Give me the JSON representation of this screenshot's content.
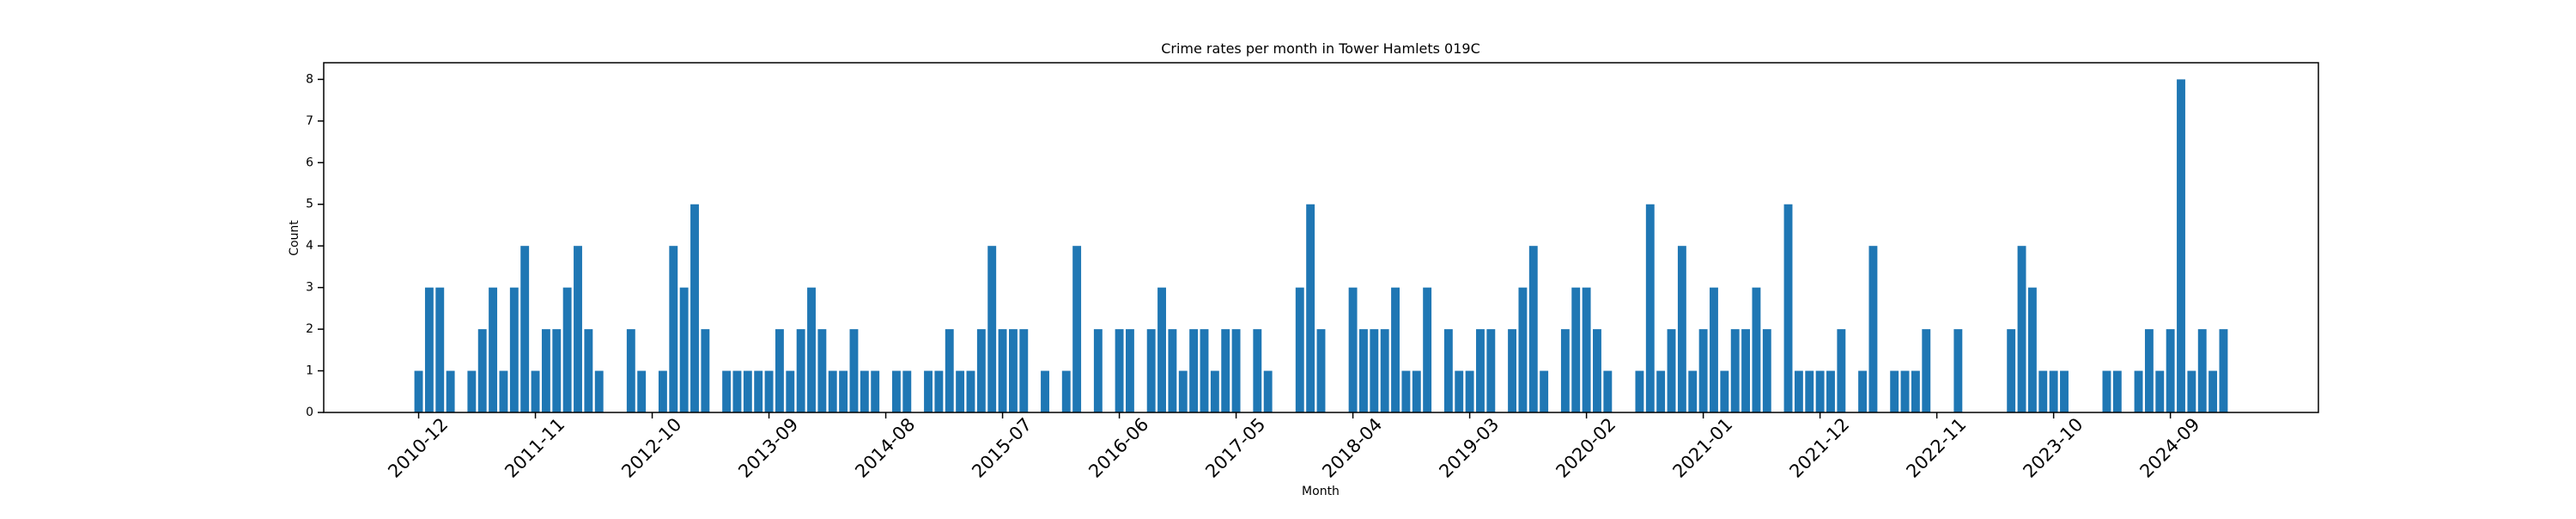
{
  "chart_data": {
    "type": "bar",
    "title": "Crime rates per month in Tower Hamlets 019C",
    "x_label": "Month",
    "y_label": "Count",
    "color": "#1f77b4",
    "ylim": [
      0,
      8.4
    ],
    "yticks": [
      0,
      1,
      2,
      3,
      4,
      5,
      6,
      7,
      8
    ],
    "grid": false,
    "categories": [
      "2010-12",
      null,
      null,
      null,
      null,
      null,
      null,
      null,
      null,
      null,
      null,
      "2011-11",
      null,
      null,
      null,
      null,
      null,
      null,
      null,
      null,
      null,
      null,
      "2012-10",
      null,
      null,
      null,
      null,
      null,
      null,
      null,
      null,
      null,
      null,
      "2013-09",
      null,
      null,
      null,
      null,
      null,
      null,
      null,
      null,
      null,
      null,
      "2014-08",
      null,
      null,
      null,
      null,
      null,
      null,
      null,
      null,
      null,
      null,
      "2015-07",
      null,
      null,
      null,
      null,
      null,
      null,
      null,
      null,
      null,
      null,
      "2016-06",
      null,
      null,
      null,
      null,
      null,
      null,
      null,
      null,
      null,
      null,
      "2017-05",
      null,
      null,
      null,
      null,
      null,
      null,
      null,
      null,
      null,
      null,
      "2018-04",
      null,
      null,
      null,
      null,
      null,
      null,
      null,
      null,
      null,
      null,
      "2019-03",
      null,
      null,
      null,
      null,
      null,
      null,
      null,
      null,
      null,
      null,
      "2020-02",
      null,
      null,
      null,
      null,
      null,
      null,
      null,
      null,
      null,
      null,
      "2021-01",
      null,
      null,
      null,
      null,
      null,
      null,
      null,
      null,
      null,
      null,
      "2021-12",
      null,
      null,
      null,
      null,
      null,
      null,
      null,
      null,
      null,
      null,
      "2022-11",
      null,
      null,
      null,
      null,
      null,
      null,
      null,
      null,
      null,
      null,
      "2023-10",
      null,
      null,
      null,
      null,
      null,
      null,
      null,
      null,
      null,
      null,
      "2024-09",
      null,
      null,
      null,
      null,
      null
    ],
    "values": [
      1,
      3,
      3,
      1,
      0,
      1,
      2,
      3,
      1,
      3,
      4,
      1,
      2,
      2,
      3,
      4,
      2,
      1,
      0,
      0,
      2,
      1,
      0,
      1,
      4,
      3,
      5,
      2,
      0,
      1,
      1,
      1,
      1,
      1,
      2,
      1,
      2,
      3,
      2,
      1,
      1,
      2,
      1,
      1,
      0,
      1,
      1,
      0,
      1,
      1,
      2,
      1,
      1,
      2,
      4,
      2,
      2,
      2,
      0,
      1,
      0,
      1,
      4,
      0,
      2,
      0,
      2,
      2,
      0,
      2,
      3,
      2,
      1,
      2,
      2,
      1,
      2,
      2,
      0,
      2,
      1,
      0,
      0,
      3,
      5,
      2,
      0,
      0,
      3,
      2,
      2,
      2,
      3,
      1,
      1,
      3,
      0,
      2,
      1,
      1,
      2,
      2,
      0,
      2,
      3,
      4,
      1,
      0,
      2,
      3,
      3,
      2,
      1,
      0,
      0,
      1,
      5,
      1,
      2,
      4,
      1,
      2,
      3,
      1,
      2,
      2,
      3,
      2,
      0,
      5,
      1,
      1,
      1,
      1,
      2,
      0,
      1,
      4,
      0,
      1,
      1,
      1,
      2,
      0,
      0,
      2,
      0,
      0,
      0,
      0,
      2,
      4,
      3,
      1,
      1,
      1,
      0,
      0,
      0,
      1,
      1,
      0,
      1,
      2,
      1,
      2,
      8,
      1,
      2,
      1,
      2
    ]
  }
}
